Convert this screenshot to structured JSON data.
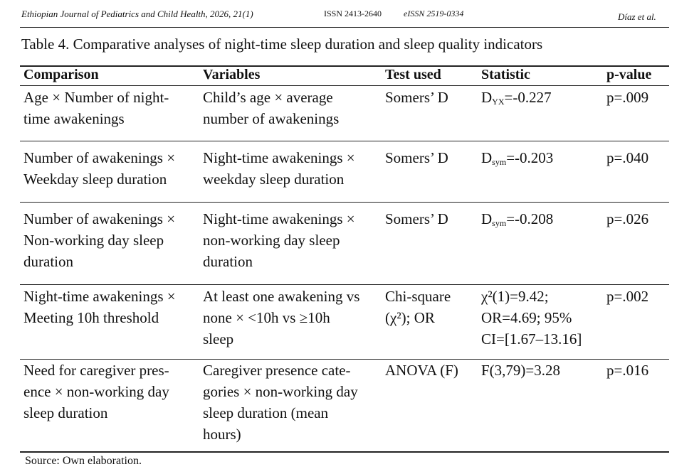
{
  "header": {
    "journal": "Ethiopian Journal of Pediatrics and Child Health, 2026, 21(1)",
    "issn": "ISSN 2413-2640",
    "eissn": "eISSN 2519-0334",
    "authors": "Díaz et al."
  },
  "table": {
    "caption": "Table 4. Comparative analyses of night-time sleep duration and sleep quality indicators",
    "columns": [
      "Comparison",
      "Variables",
      "Test used",
      "Statistic",
      "p-value"
    ],
    "rows": [
      [
        [
          "Age × Number of night-",
          "time awakenings"
        ],
        [
          "Child’s age × average",
          "number of awakenings"
        ],
        [
          "Somers’ D"
        ],
        [
          {
            "main": "D",
            "sub": "YX",
            "rest": "=-0.227"
          }
        ],
        [
          "p=.009"
        ]
      ],
      [
        [
          "Number of awakenings ×",
          "Weekday sleep duration"
        ],
        [
          "Night-time awakenings ×",
          "weekday sleep duration"
        ],
        [
          "Somers’ D"
        ],
        [
          {
            "main": "D",
            "sub": "sym",
            "rest": "=-0.203"
          }
        ],
        [
          "p=.040"
        ]
      ],
      [
        [
          "Number of awakenings ×",
          "Non-working day sleep",
          "duration"
        ],
        [
          "Night-time awakenings ×",
          "non-working day sleep",
          "duration"
        ],
        [
          "Somers’ D"
        ],
        [
          {
            "main": "D",
            "sub": "sym",
            "rest": "=-0.208"
          }
        ],
        [
          "p=.026"
        ]
      ],
      [
        [
          "Night-time awakenings ×",
          "Meeting 10h threshold"
        ],
        [
          "At least one awakening vs",
          "none × <10h vs ≥10h",
          "sleep"
        ],
        [
          "Chi-square",
          "(χ²); OR"
        ],
        [
          "χ²(1)=9.42;",
          "OR=4.69; 95%",
          "CI=[1.67–13.16]"
        ],
        [
          "p=.002"
        ]
      ],
      [
        [
          "Need for caregiver pres-",
          "ence × non-working day",
          "sleep duration"
        ],
        [
          "Caregiver presence cate-",
          "gories × non-working day",
          "sleep duration (mean",
          "hours)"
        ],
        [
          "ANOVA (F)"
        ],
        [
          "F(3,79)=3.28"
        ],
        [
          "p=.016"
        ]
      ]
    ],
    "source": "Source: Own elaboration."
  }
}
